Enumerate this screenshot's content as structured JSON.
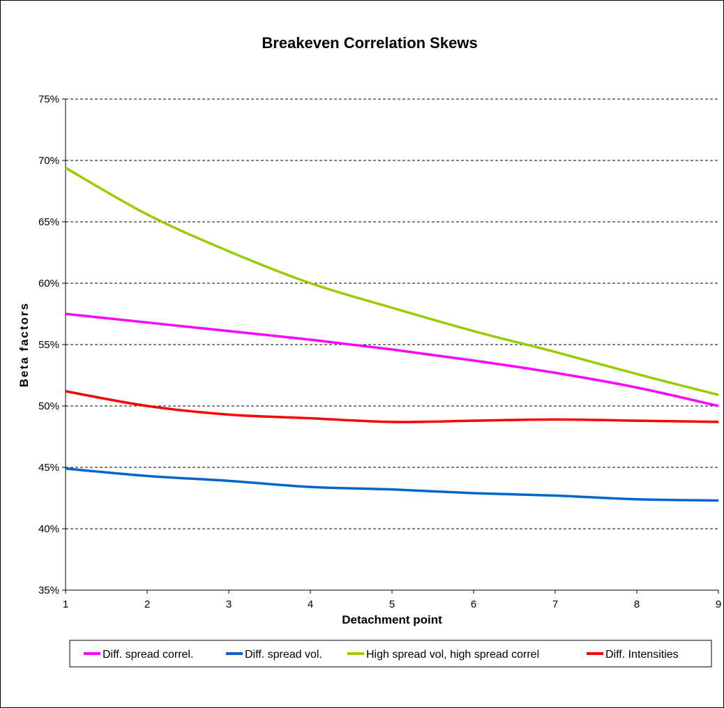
{
  "chart_data": {
    "type": "line",
    "title": "Breakeven Correlation Skews",
    "xlabel": "Detachment point",
    "ylabel": "Beta factors",
    "x": [
      1,
      2,
      3,
      4,
      5,
      6,
      7,
      8,
      9
    ],
    "xlim": [
      1,
      9
    ],
    "ylim": [
      35,
      75
    ],
    "yticks": [
      35,
      40,
      45,
      50,
      55,
      60,
      65,
      70,
      75
    ],
    "ytick_labels": [
      "35%",
      "40%",
      "45%",
      "50%",
      "55%",
      "60%",
      "65%",
      "70%",
      "75%"
    ],
    "xtick_labels": [
      "1",
      "2",
      "3",
      "4",
      "5",
      "6",
      "7",
      "8",
      "9"
    ],
    "grid": "horizontal dashed",
    "legend_position": "bottom",
    "series": [
      {
        "name": "Diff. spread correl.",
        "color": "#FF00FF",
        "values": [
          57.5,
          56.8,
          56.1,
          55.4,
          54.6,
          53.7,
          52.7,
          51.5,
          50.0
        ]
      },
      {
        "name": "Diff. spread vol.",
        "color": "#0066CC",
        "values": [
          44.9,
          44.3,
          43.9,
          43.4,
          43.2,
          42.9,
          42.7,
          42.4,
          42.3
        ]
      },
      {
        "name": "High spread vol, high spread correl",
        "color": "#99CC00",
        "values": [
          69.4,
          65.6,
          62.6,
          60.0,
          58.0,
          56.1,
          54.4,
          52.6,
          50.9
        ]
      },
      {
        "name": "Diff. Intensities",
        "color": "#FF0000",
        "values": [
          51.2,
          50.0,
          49.3,
          49.0,
          48.7,
          48.8,
          48.9,
          48.8,
          48.7
        ]
      }
    ]
  }
}
